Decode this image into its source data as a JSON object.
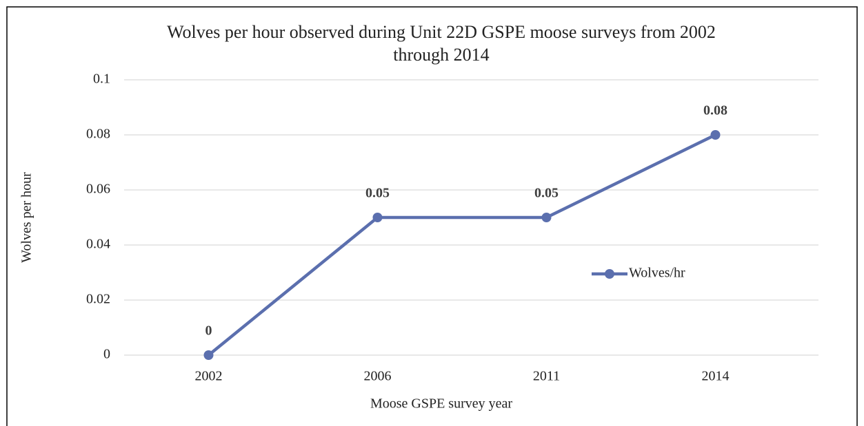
{
  "chart_data": {
    "type": "line",
    "title": "Wolves per hour observed during Unit 22D GSPE moose surveys from 2002 through 2014",
    "x_label": "Moose GSPE survey year",
    "y_label": "Wolves per hour",
    "categories": [
      "2002",
      "2006",
      "2011",
      "2014"
    ],
    "series": [
      {
        "name": "Wolves/hr",
        "color": "#5b6fae",
        "values": [
          0,
          0.05,
          0.05,
          0.08
        ]
      }
    ],
    "ylim": [
      0,
      0.1
    ],
    "yticks": [
      0,
      0.02,
      0.04,
      0.06,
      0.08,
      0.1
    ],
    "grid": true,
    "legend": "right",
    "data_labels": true
  }
}
